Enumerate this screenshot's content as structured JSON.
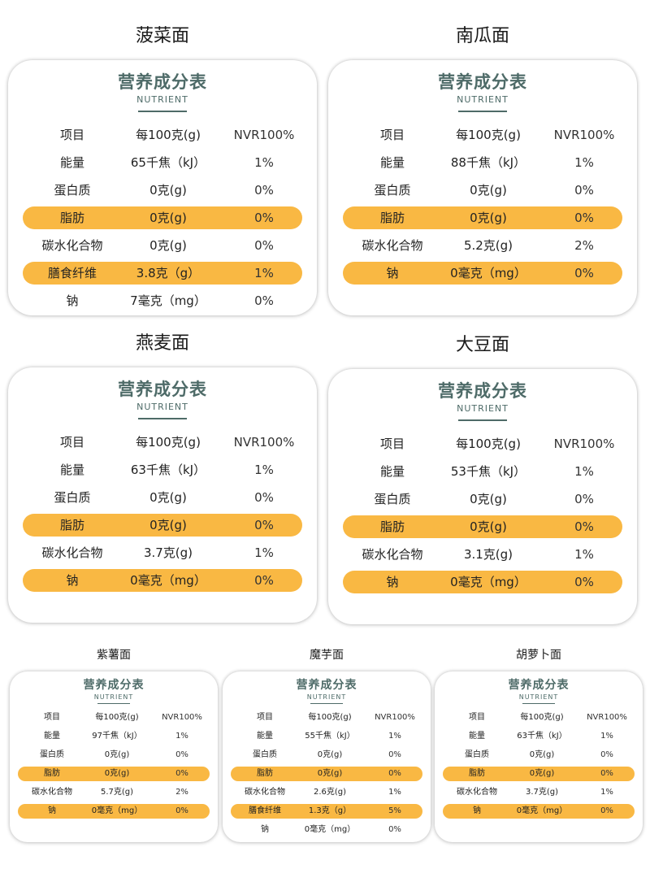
{
  "labels": {
    "card_title": "营养成分表",
    "card_subtitle": "NUTRIENT",
    "col_item": "项目",
    "col_per100": "每100克(g)",
    "col_nvr": "NVR100%"
  },
  "colors": {
    "highlight": "#f9b843",
    "heading": "#4e6b68"
  },
  "products": [
    {
      "name": "菠菜面",
      "rows": [
        {
          "item": "能量",
          "value": "65千焦（kJ）",
          "nvr": "1%",
          "highlight": false
        },
        {
          "item": "蛋白质",
          "value": "0克(g)",
          "nvr": "0%",
          "highlight": false
        },
        {
          "item": "脂肪",
          "value": "0克(g)",
          "nvr": "0%",
          "highlight": true
        },
        {
          "item": "碳水化合物",
          "value": "0克(g)",
          "nvr": "0%",
          "highlight": false
        },
        {
          "item": "膳食纤维",
          "value": "3.8克（g）",
          "nvr": "1%",
          "highlight": true
        },
        {
          "item": "钠",
          "value": "7毫克（mg）",
          "nvr": "0%",
          "highlight": false
        }
      ]
    },
    {
      "name": "南瓜面",
      "rows": [
        {
          "item": "能量",
          "value": "88千焦（kJ）",
          "nvr": "1%",
          "highlight": false
        },
        {
          "item": "蛋白质",
          "value": "0克(g)",
          "nvr": "0%",
          "highlight": false
        },
        {
          "item": "脂肪",
          "value": "0克(g)",
          "nvr": "0%",
          "highlight": true
        },
        {
          "item": "碳水化合物",
          "value": "5.2克(g)",
          "nvr": "2%",
          "highlight": false
        },
        {
          "item": "钠",
          "value": "0毫克（mg）",
          "nvr": "0%",
          "highlight": true
        }
      ]
    },
    {
      "name": "燕麦面",
      "rows": [
        {
          "item": "能量",
          "value": "63千焦（kJ）",
          "nvr": "1%",
          "highlight": false
        },
        {
          "item": "蛋白质",
          "value": "0克(g)",
          "nvr": "0%",
          "highlight": false
        },
        {
          "item": "脂肪",
          "value": "0克(g)",
          "nvr": "0%",
          "highlight": true
        },
        {
          "item": "碳水化合物",
          "value": "3.7克(g)",
          "nvr": "1%",
          "highlight": false
        },
        {
          "item": "钠",
          "value": "0毫克（mg）",
          "nvr": "0%",
          "highlight": true
        }
      ]
    },
    {
      "name": "大豆面",
      "rows": [
        {
          "item": "能量",
          "value": "53千焦（kJ）",
          "nvr": "1%",
          "highlight": false
        },
        {
          "item": "蛋白质",
          "value": "0克(g)",
          "nvr": "0%",
          "highlight": false
        },
        {
          "item": "脂肪",
          "value": "0克(g)",
          "nvr": "0%",
          "highlight": true
        },
        {
          "item": "碳水化合物",
          "value": "3.1克(g)",
          "nvr": "1%",
          "highlight": false
        },
        {
          "item": "钠",
          "value": "0毫克（mg）",
          "nvr": "0%",
          "highlight": true
        }
      ]
    },
    {
      "name": "紫薯面",
      "rows": [
        {
          "item": "能量",
          "value": "97千焦（kJ）",
          "nvr": "1%",
          "highlight": false
        },
        {
          "item": "蛋白质",
          "value": "0克(g)",
          "nvr": "0%",
          "highlight": false
        },
        {
          "item": "脂肪",
          "value": "0克(g)",
          "nvr": "0%",
          "highlight": true
        },
        {
          "item": "碳水化合物",
          "value": "5.7克(g)",
          "nvr": "2%",
          "highlight": false
        },
        {
          "item": "钠",
          "value": "0毫克（mg）",
          "nvr": "0%",
          "highlight": true
        }
      ]
    },
    {
      "name": "魔芋面",
      "rows": [
        {
          "item": "能量",
          "value": "55千焦（kJ）",
          "nvr": "1%",
          "highlight": false
        },
        {
          "item": "蛋白质",
          "value": "0克(g)",
          "nvr": "0%",
          "highlight": false
        },
        {
          "item": "脂肪",
          "value": "0克(g)",
          "nvr": "0%",
          "highlight": true
        },
        {
          "item": "碳水化合物",
          "value": "2.6克(g)",
          "nvr": "1%",
          "highlight": false
        },
        {
          "item": "膳食纤维",
          "value": "1.3克（g）",
          "nvr": "5%",
          "highlight": true
        },
        {
          "item": "钠",
          "value": "0毫克（mg）",
          "nvr": "0%",
          "highlight": false
        }
      ]
    },
    {
      "name": "胡萝卜面",
      "rows": [
        {
          "item": "能量",
          "value": "63千焦（kJ）",
          "nvr": "1%",
          "highlight": false
        },
        {
          "item": "蛋白质",
          "value": "0克(g)",
          "nvr": "0%",
          "highlight": false
        },
        {
          "item": "脂肪",
          "value": "0克(g)",
          "nvr": "0%",
          "highlight": true
        },
        {
          "item": "碳水化合物",
          "value": "3.7克(g)",
          "nvr": "1%",
          "highlight": false
        },
        {
          "item": "钠",
          "value": "0毫克（mg）",
          "nvr": "0%",
          "highlight": true
        }
      ]
    }
  ]
}
